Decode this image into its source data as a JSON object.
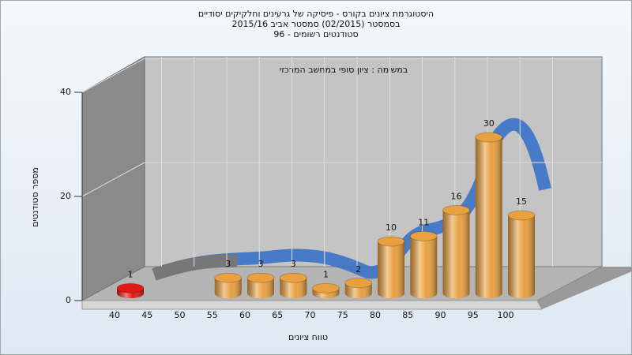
{
  "chart_data": {
    "type": "bar",
    "title": "היסטוגרמת ציונים בקורס - פיסיקה של גרעינים וחלקיקים יסודיים",
    "subtitle": "בסמסטר (02/2015) סמסטר אביב 2015/16",
    "subtitle2": "סטודנטים רשומים - 96",
    "annotation": "במשימה : ציון סופי במחשב המרכזי",
    "x_label": "טווח ציונים",
    "y_label": "מספר סטודנטים",
    "categories": [
      "40",
      "45",
      "50",
      "55",
      "60",
      "65",
      "70",
      "75",
      "80",
      "85",
      "90",
      "95",
      "100"
    ],
    "values": [
      1,
      null,
      null,
      3,
      3,
      3,
      1,
      2,
      10,
      11,
      16,
      30,
      15
    ],
    "bar_colors": [
      "#e01818",
      "#e8a040",
      "#e8a040",
      "#e8a040",
      "#e8a040",
      "#e8a040",
      "#e8a040",
      "#e8a040",
      "#e8a040",
      "#e8a040",
      "#e8a040",
      "#e8a040",
      "#e8a040"
    ],
    "ylim": [
      0,
      40
    ],
    "yticks": [
      0,
      20,
      40
    ],
    "grid": true
  }
}
